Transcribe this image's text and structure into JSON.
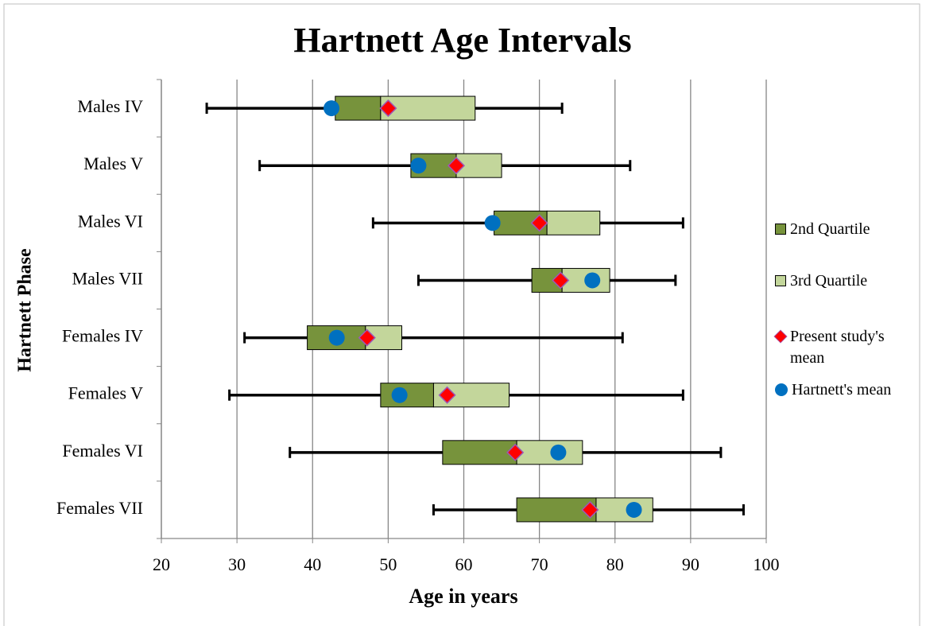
{
  "chart_data": {
    "type": "box",
    "title": "Hartnett Age Intervals",
    "xlabel": "Age in years",
    "ylabel": "Hartnett Phase",
    "categories": [
      "Males IV",
      "Males V",
      "Males VI",
      "Males VII",
      "Females IV",
      "Females V",
      "Females VI",
      "Females VII"
    ],
    "min": [
      26,
      33,
      48,
      54,
      31,
      29,
      37,
      56
    ],
    "q1": [
      43,
      53,
      64,
      69,
      39.3,
      49,
      57.2,
      67
    ],
    "median": [
      49,
      59,
      71,
      73,
      47,
      56,
      67,
      77.5
    ],
    "q3": [
      61.5,
      65,
      78,
      79.3,
      51.8,
      66,
      75.7,
      85
    ],
    "max": [
      73,
      82,
      89,
      88,
      81,
      89,
      94,
      97
    ],
    "series": [
      {
        "name": "2nd Quartile",
        "color": "#77933c"
      },
      {
        "name": "3rd Quartile",
        "color": "#c3d69b"
      },
      {
        "name": "Present study's mean",
        "color": "#ff0000",
        "values": [
          50,
          59,
          70,
          72.8,
          47.2,
          57.8,
          66.8,
          76.7
        ]
      },
      {
        "name": "Hartnett's mean",
        "color": "#0070c0",
        "values": [
          42.5,
          54,
          63.8,
          77,
          43.2,
          51.5,
          72.5,
          82.5
        ]
      }
    ],
    "xlim": [
      20,
      100
    ],
    "xticks": [
      20,
      30,
      40,
      50,
      60,
      70,
      80,
      90,
      100
    ],
    "grid": true
  }
}
